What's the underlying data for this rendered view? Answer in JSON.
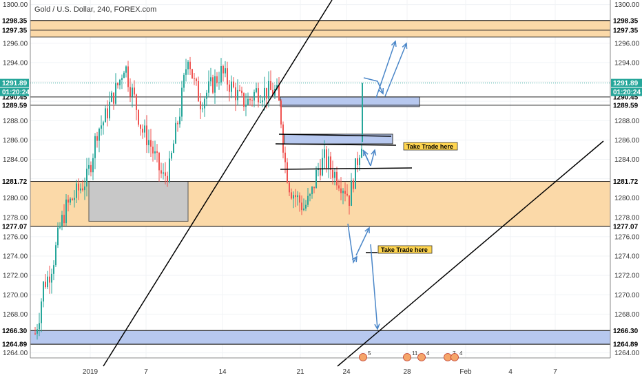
{
  "title": "Gold / U.S. Dollar, 240, FOREX.com",
  "colors": {
    "up": "#26a69a",
    "down": "#ef5350",
    "zone_orange": "#fbd9a8",
    "zone_blue": "#b7c8ef",
    "zone_gray": "#c8c8c8",
    "current_price": "#26a69a",
    "arrow": "#4a86c8",
    "trade_label_bg": "#ffd54f"
  },
  "chart_data": {
    "type": "candlestick",
    "title": "Gold / U.S. Dollar, 240, FOREX.com",
    "ylim": [
      1263,
      1301
    ],
    "y_ticks": [
      1264.0,
      1266.0,
      1268.0,
      1270.0,
      1272.0,
      1274.0,
      1276.0,
      1278.0,
      1280.0,
      1282.0,
      1284.0,
      1286.0,
      1288.0,
      1290.0,
      1292.0,
      1294.0,
      1296.0,
      1298.0,
      1300.0
    ],
    "x_tick_labels": [
      "2019",
      "7",
      "14",
      "21",
      "24",
      "28",
      "Feb",
      "4",
      "7"
    ],
    "price_levels": [
      {
        "label": "1298.35",
        "value": 1298.35,
        "style": "dark"
      },
      {
        "label": "1297.35",
        "value": 1297.35,
        "style": "dark"
      },
      {
        "label": "1290.45",
        "value": 1290.45,
        "style": "dark"
      },
      {
        "label": "1289.59",
        "value": 1289.59,
        "style": "dark"
      },
      {
        "label": "1281.72",
        "value": 1281.72,
        "style": "dark"
      },
      {
        "label": "1277.07",
        "value": 1277.07,
        "style": "dark"
      },
      {
        "label": "1266.30",
        "value": 1266.3,
        "style": "dark"
      },
      {
        "label": "1264.89",
        "value": 1264.89,
        "style": "dark"
      }
    ],
    "current_price": {
      "label": "1291.89",
      "value": 1291.89,
      "countdown": "01:20:24"
    },
    "annotations": [
      {
        "text": "Take Trade here"
      },
      {
        "text": "Take Trade here"
      }
    ],
    "events": [
      "5",
      "11",
      "4",
      "7",
      "4"
    ]
  }
}
